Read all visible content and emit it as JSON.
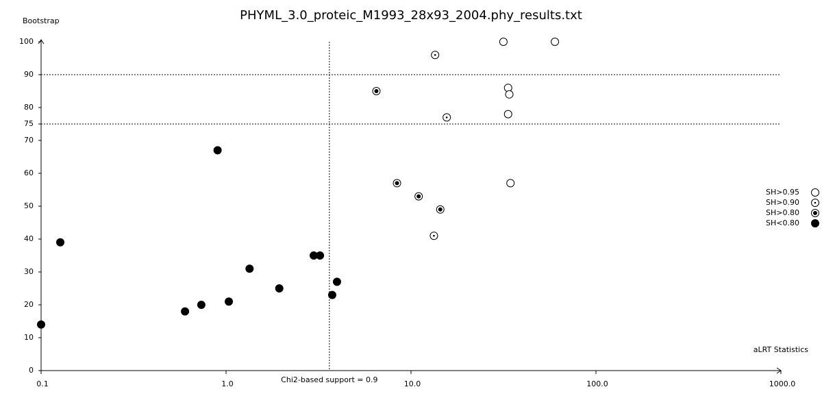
{
  "chart_data": {
    "type": "scatter",
    "title": "PHYML_3.0_proteic_M1993_28x93_2004.phy_results.txt",
    "y_label": "Bootstrap",
    "x_label": "aLRT Statistics",
    "annotation": "Chi2-based support = 0.9",
    "x_scale": "log",
    "xlim": [
      0.1,
      1000
    ],
    "ylim": [
      0,
      100
    ],
    "xticks": [
      {
        "value": 0.1,
        "label": "0.1"
      },
      {
        "value": 1,
        "label": "1.0"
      },
      {
        "value": 10,
        "label": "10.0"
      },
      {
        "value": 100,
        "label": "100.0"
      },
      {
        "value": 1000,
        "label": "1000.0"
      }
    ],
    "yticks": [
      0,
      10,
      20,
      30,
      40,
      50,
      60,
      70,
      75,
      80,
      90,
      100
    ],
    "hlines": [
      90,
      75
    ],
    "vline": 3.62,
    "legend": "right",
    "series": [
      {
        "name": "SH>0.95",
        "marker": "open",
        "color": "#000000",
        "x": [
          31.6,
          60,
          33.5,
          34,
          33.5,
          34.5
        ],
        "values": [
          100,
          100,
          86,
          84,
          78,
          57
        ]
      },
      {
        "name": "SH>0.90",
        "marker": "dot",
        "color": "#000000",
        "x": [
          13.5,
          15.6,
          13.3
        ],
        "values": [
          96,
          77,
          41
        ]
      },
      {
        "name": "SH>0.80",
        "marker": "bigdot",
        "color": "#000000",
        "x": [
          6.5,
          8.4,
          11,
          14.4
        ],
        "values": [
          85,
          57,
          53,
          49
        ]
      },
      {
        "name": "SH<0.80",
        "marker": "filled",
        "color": "#000000",
        "x": [
          0.1,
          0.127,
          0.6,
          0.735,
          0.9,
          1.035,
          1.34,
          1.94,
          2.98,
          3.22,
          3.75,
          3.98
        ],
        "values": [
          14,
          39,
          18,
          20,
          67,
          21,
          31,
          25,
          35,
          35,
          23,
          27
        ]
      }
    ]
  }
}
